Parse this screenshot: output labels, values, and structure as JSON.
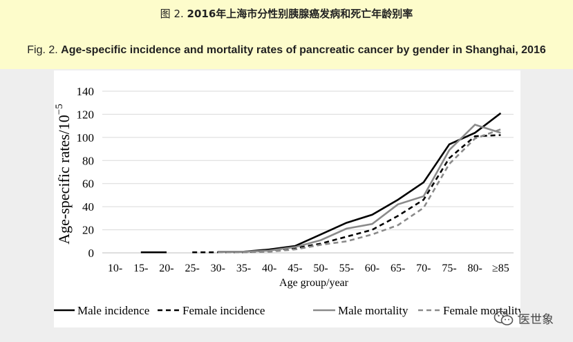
{
  "header": {
    "cn_prefix": "图 2.",
    "cn_title": "2016年上海市分性别胰腺癌发病和死亡年龄别率",
    "en_prefix": "Fig. 2.",
    "en_title": "Age-specific incidence and mortality rates of pancreatic cancer by gender in Shanghai, 2016"
  },
  "watermark": {
    "text": "医世象"
  },
  "chart_data": {
    "type": "line",
    "ylabel": "Age-specific rates/10",
    "ylabel_exp": "−5",
    "xlabel": "Age group/year",
    "ylim": [
      0,
      140
    ],
    "yticks": [
      0,
      20,
      40,
      60,
      80,
      100,
      120,
      140
    ],
    "grid": true,
    "legend_position": "bottom",
    "categories": [
      "10-",
      "15-",
      "20-",
      "25-",
      "30-",
      "35-",
      "40-",
      "45-",
      "50-",
      "55-",
      "60-",
      "65-",
      "70-",
      "75-",
      "80-",
      "≥85"
    ],
    "series": [
      {
        "name": "Male incidence",
        "color": "#000000",
        "dash": "solid",
        "values": [
          null,
          0.5,
          0.5,
          null,
          1,
          1,
          3,
          6,
          16,
          26,
          33,
          46,
          61,
          94,
          104,
          121
        ]
      },
      {
        "name": "Female incidence",
        "color": "#000000",
        "dash": "dashed",
        "values": [
          null,
          null,
          null,
          0.5,
          0.5,
          0.5,
          2,
          4,
          8,
          14,
          20,
          32,
          46,
          82,
          101,
          102
        ]
      },
      {
        "name": "Male mortality",
        "color": "#8a8a8a",
        "dash": "solid",
        "values": [
          null,
          null,
          null,
          null,
          1,
          1,
          2,
          5,
          11,
          21,
          25,
          42,
          49,
          89,
          111,
          104
        ]
      },
      {
        "name": "Female mortality",
        "color": "#8a8a8a",
        "dash": "dashed",
        "values": [
          null,
          null,
          null,
          null,
          0.5,
          0.5,
          1,
          3,
          7,
          10,
          16,
          24,
          39,
          77,
          99,
          107
        ]
      }
    ]
  }
}
